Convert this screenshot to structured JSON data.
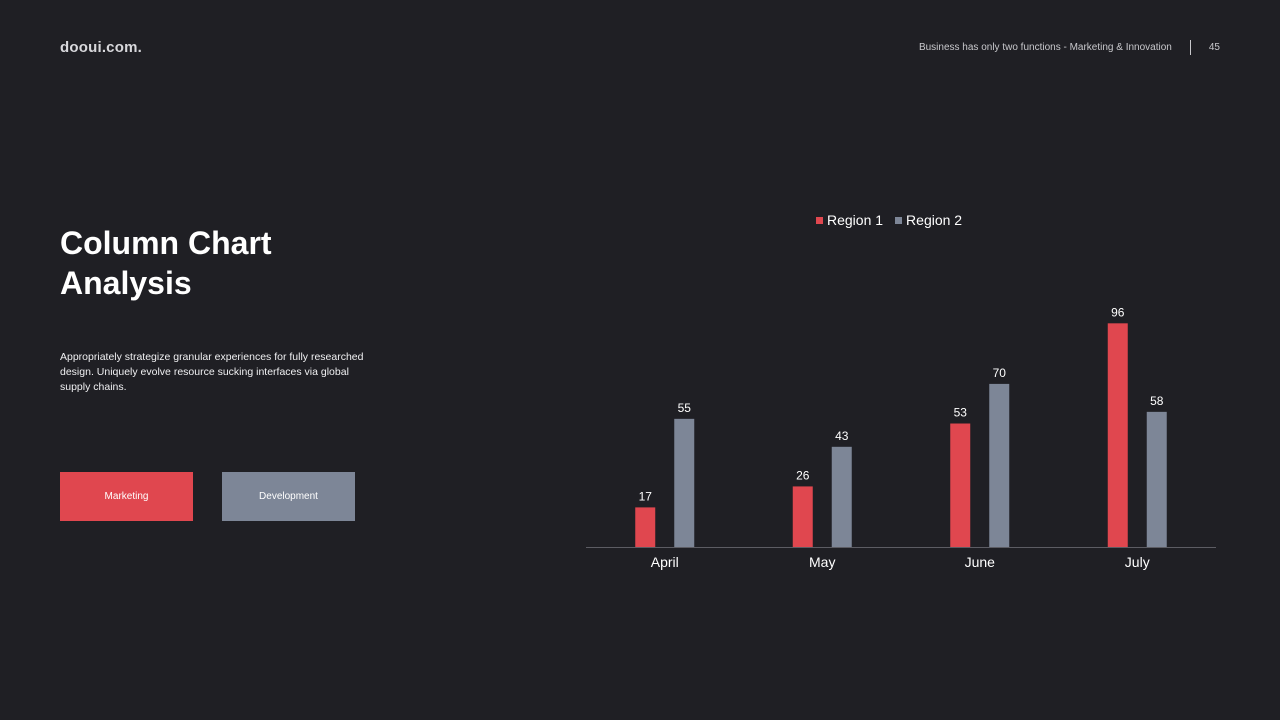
{
  "header": {
    "brand": "dooui.com.",
    "tagline": "Business has only two functions - Marketing & Innovation",
    "page_number": "45"
  },
  "main": {
    "title_line1": "Column Chart",
    "title_line2": "Analysis",
    "description": "Appropriately strategize granular experiences for fully researched design. Uniquely  evolve resource sucking interfaces via global supply chains.",
    "buttons": {
      "marketing": "Marketing",
      "development": "Development"
    }
  },
  "colors": {
    "background": "#1f1f24",
    "region1": "#e0474f",
    "region2": "#7d8697",
    "axis": "#5c5c63"
  },
  "chart_data": {
    "type": "bar",
    "title": "",
    "xlabel": "",
    "ylabel": "",
    "categories": [
      "April",
      "May",
      "June",
      "July"
    ],
    "series": [
      {
        "name": "Region 1",
        "values": [
          17,
          26,
          53,
          96
        ]
      },
      {
        "name": "Region 2",
        "values": [
          55,
          43,
          70,
          58
        ]
      }
    ],
    "ylim": [
      0,
      100
    ],
    "grid": false,
    "legend": "top-center",
    "data_labels": true
  }
}
